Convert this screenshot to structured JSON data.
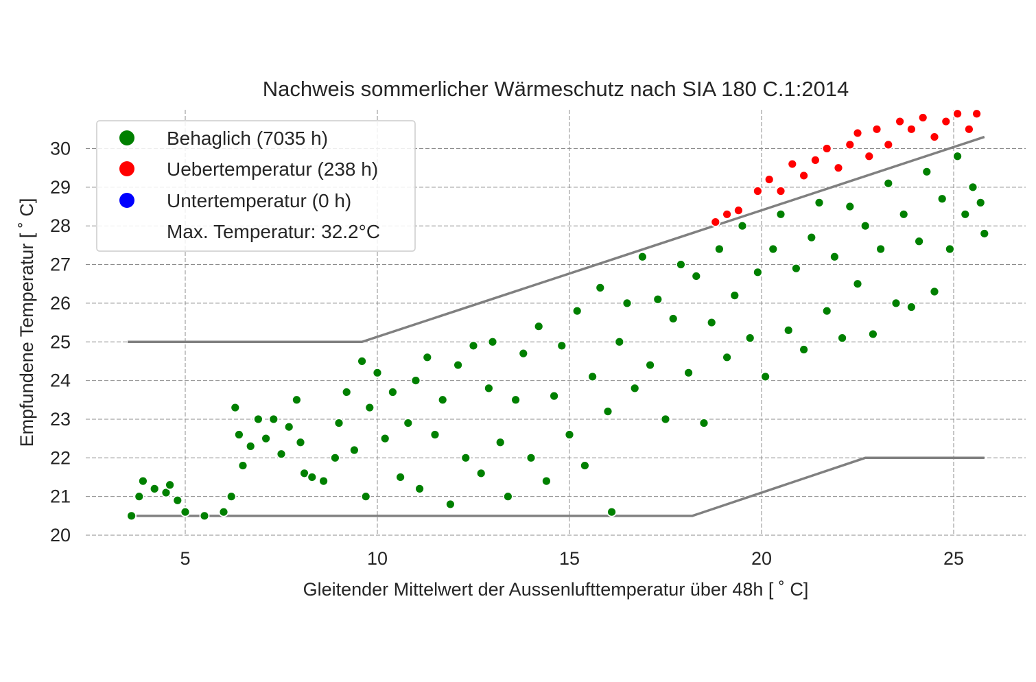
{
  "chart_data": {
    "type": "scatter",
    "title": "Nachweis sommerlicher Wärmeschutz nach SIA 180 C.1:2014",
    "xlabel": "Gleitender Mittelwert der Aussenlufttemperatur über 48h  [$^\\circ$C]",
    "xlabel_display": "Gleitender Mittelwert der Aussenlufttemperatur über 48h  [ ˚ C]",
    "ylabel_display": "Empfundene Temperatur  [ ˚ C]",
    "xlim": [
      2.5,
      27
    ],
    "ylim": [
      19.8,
      31
    ],
    "x_ticks": [
      5,
      10,
      15,
      20,
      25
    ],
    "y_ticks": [
      20,
      21,
      22,
      23,
      24,
      25,
      26,
      27,
      28,
      29,
      30
    ],
    "grid": true,
    "legend_position": "top-left",
    "legend": [
      {
        "label": "Behaglich (7035 h)",
        "color": "#008000"
      },
      {
        "label": "Uebertemperatur (238 h)",
        "color": "#ff0000"
      },
      {
        "label": "Untertemperatur (0 h)",
        "color": "#0000ff"
      },
      {
        "label": "Max. Temperatur: 32.2°C",
        "color": null
      }
    ],
    "upper_limit": {
      "x": [
        3.5,
        9.6,
        25.8
      ],
      "y": [
        25.0,
        25.0,
        30.3
      ]
    },
    "lower_limit": {
      "x": [
        3.5,
        18.2,
        22.7,
        25.8
      ],
      "y": [
        20.5,
        20.5,
        22.0,
        22.0
      ]
    },
    "series": [
      {
        "name": "Behaglich (7035 h)",
        "color": "#008000",
        "points": [
          [
            3.6,
            20.5
          ],
          [
            3.8,
            21.0
          ],
          [
            3.9,
            21.4
          ],
          [
            4.2,
            21.2
          ],
          [
            4.5,
            21.1
          ],
          [
            4.6,
            21.3
          ],
          [
            4.8,
            20.9
          ],
          [
            5.0,
            20.6
          ],
          [
            5.5,
            20.5
          ],
          [
            6.0,
            20.6
          ],
          [
            6.2,
            21.0
          ],
          [
            6.3,
            23.3
          ],
          [
            6.4,
            22.6
          ],
          [
            6.5,
            21.8
          ],
          [
            6.7,
            22.3
          ],
          [
            6.9,
            23.0
          ],
          [
            7.1,
            22.5
          ],
          [
            7.3,
            23.0
          ],
          [
            7.5,
            22.1
          ],
          [
            7.7,
            22.8
          ],
          [
            7.9,
            23.5
          ],
          [
            8.0,
            22.4
          ],
          [
            8.1,
            21.6
          ],
          [
            8.3,
            21.5
          ],
          [
            8.6,
            21.4
          ],
          [
            8.9,
            22.0
          ],
          [
            9.0,
            22.9
          ],
          [
            9.2,
            23.7
          ],
          [
            9.4,
            22.2
          ],
          [
            9.6,
            24.5
          ],
          [
            9.7,
            21.0
          ],
          [
            9.8,
            23.3
          ],
          [
            10.0,
            24.2
          ],
          [
            10.2,
            22.5
          ],
          [
            10.4,
            23.7
          ],
          [
            10.6,
            21.5
          ],
          [
            10.8,
            22.9
          ],
          [
            11.0,
            24.0
          ],
          [
            11.1,
            21.2
          ],
          [
            11.3,
            24.6
          ],
          [
            11.5,
            22.6
          ],
          [
            11.7,
            23.5
          ],
          [
            11.9,
            20.8
          ],
          [
            12.1,
            24.4
          ],
          [
            12.3,
            22.0
          ],
          [
            12.5,
            24.9
          ],
          [
            12.7,
            21.6
          ],
          [
            12.9,
            23.8
          ],
          [
            13.0,
            25.0
          ],
          [
            13.2,
            22.4
          ],
          [
            13.4,
            21.0
          ],
          [
            13.6,
            23.5
          ],
          [
            13.8,
            24.7
          ],
          [
            14.0,
            22.0
          ],
          [
            14.2,
            25.4
          ],
          [
            14.4,
            21.4
          ],
          [
            14.6,
            23.6
          ],
          [
            14.8,
            24.9
          ],
          [
            15.0,
            22.6
          ],
          [
            15.2,
            25.8
          ],
          [
            15.4,
            21.8
          ],
          [
            15.6,
            24.1
          ],
          [
            15.8,
            26.4
          ],
          [
            16.0,
            23.2
          ],
          [
            16.1,
            20.6
          ],
          [
            16.3,
            25.0
          ],
          [
            16.5,
            26.0
          ],
          [
            16.7,
            23.8
          ],
          [
            16.9,
            27.2
          ],
          [
            17.1,
            24.4
          ],
          [
            17.3,
            26.1
          ],
          [
            17.5,
            23.0
          ],
          [
            17.7,
            25.6
          ],
          [
            17.9,
            27.0
          ],
          [
            18.1,
            24.2
          ],
          [
            18.3,
            26.7
          ],
          [
            18.5,
            22.9
          ],
          [
            18.7,
            25.5
          ],
          [
            18.9,
            27.4
          ],
          [
            19.1,
            24.6
          ],
          [
            19.3,
            26.2
          ],
          [
            19.5,
            28.0
          ],
          [
            19.7,
            25.1
          ],
          [
            19.9,
            26.8
          ],
          [
            20.1,
            24.1
          ],
          [
            20.3,
            27.4
          ],
          [
            20.5,
            28.3
          ],
          [
            20.7,
            25.3
          ],
          [
            20.9,
            26.9
          ],
          [
            21.1,
            24.8
          ],
          [
            21.3,
            27.7
          ],
          [
            21.5,
            28.6
          ],
          [
            21.7,
            25.8
          ],
          [
            21.9,
            27.2
          ],
          [
            22.1,
            25.1
          ],
          [
            22.3,
            28.5
          ],
          [
            22.5,
            26.5
          ],
          [
            22.7,
            28.0
          ],
          [
            22.9,
            25.2
          ],
          [
            23.1,
            27.4
          ],
          [
            23.3,
            29.1
          ],
          [
            23.5,
            26.0
          ],
          [
            23.7,
            28.3
          ],
          [
            23.9,
            25.9
          ],
          [
            24.1,
            27.6
          ],
          [
            24.3,
            29.4
          ],
          [
            24.5,
            26.3
          ],
          [
            24.7,
            28.7
          ],
          [
            24.9,
            27.4
          ],
          [
            25.1,
            29.8
          ],
          [
            25.3,
            28.3
          ],
          [
            25.5,
            29.0
          ],
          [
            25.7,
            28.6
          ],
          [
            25.8,
            27.8
          ]
        ]
      },
      {
        "name": "Uebertemperatur (238 h)",
        "color": "#ff0000",
        "points": [
          [
            18.8,
            28.1
          ],
          [
            19.1,
            28.3
          ],
          [
            19.4,
            28.4
          ],
          [
            19.9,
            28.9
          ],
          [
            20.2,
            29.2
          ],
          [
            20.5,
            28.9
          ],
          [
            20.8,
            29.6
          ],
          [
            21.1,
            29.3
          ],
          [
            21.4,
            29.7
          ],
          [
            21.7,
            30.0
          ],
          [
            22.0,
            29.5
          ],
          [
            22.3,
            30.1
          ],
          [
            22.5,
            30.4
          ],
          [
            22.8,
            29.8
          ],
          [
            23.0,
            30.5
          ],
          [
            23.3,
            30.1
          ],
          [
            23.6,
            30.7
          ],
          [
            23.9,
            30.5
          ],
          [
            24.2,
            30.8
          ],
          [
            24.5,
            30.3
          ],
          [
            24.8,
            30.7
          ],
          [
            25.1,
            30.9
          ],
          [
            25.4,
            30.5
          ],
          [
            25.6,
            30.9
          ]
        ]
      },
      {
        "name": "Untertemperatur (0 h)",
        "color": "#0000ff",
        "points": []
      }
    ]
  }
}
